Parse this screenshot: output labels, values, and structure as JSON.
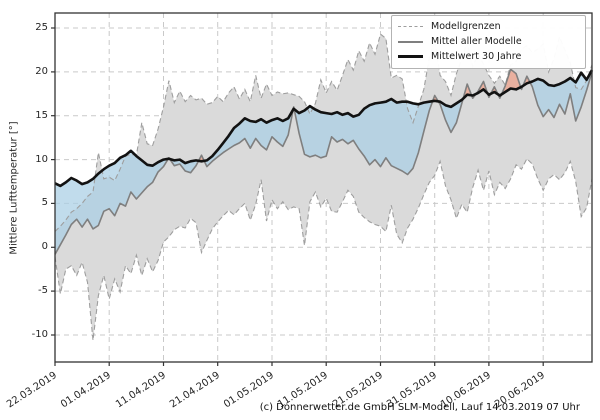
{
  "caption": "(c) Donnerwetter.de GmbH SLM-Modell, Lauf 14.03.2019 07 Uhr",
  "chart_data": {
    "type": "line",
    "title": "",
    "xlabel": "",
    "ylabel": "Mittlere Lufttemperatur [°]",
    "ylim": [
      -13,
      26.7
    ],
    "yticks": [
      25,
      20,
      15,
      10,
      5,
      0,
      -5,
      -10
    ],
    "grid": true,
    "legend_position": "upper right",
    "legend": [
      "Modellgrenzen",
      "Mittel aller Modelle",
      "Mittelwert 30 Jahre"
    ],
    "x_tick_labels": [
      "22.03.2019",
      "01.04.2019",
      "11.04.2019",
      "21.04.2019",
      "01.05.2019",
      "11.05.2019",
      "21.05.2019",
      "31.05.2019",
      "10.06.2019",
      "20.06.2019"
    ],
    "x_tick_days": [
      0,
      10,
      20,
      30,
      40,
      50,
      60,
      70,
      80,
      90
    ],
    "n_days": 100,
    "series": [
      {
        "name": "Modellgrenzen (Maximum)",
        "style": "dashed-gray",
        "values": [
          1.8,
          2.4,
          3.1,
          4.0,
          4.4,
          5.0,
          5.8,
          6.3,
          10.8,
          7.8,
          8.0,
          7.6,
          8.9,
          10.4,
          10.6,
          10.5,
          14.2,
          11.8,
          11.6,
          13.5,
          16.0,
          19.0,
          16.5,
          17.8,
          16.6,
          17.3,
          16.8,
          17.0,
          16.3,
          16.5,
          17.2,
          16.6,
          17.6,
          18.3,
          16.9,
          18.0,
          16.6,
          19.6,
          17.0,
          18.6,
          17.3,
          17.7,
          17.5,
          17.6,
          17.4,
          17.2,
          16.6,
          15.2,
          16.4,
          19.1,
          17.6,
          18.9,
          17.9,
          19.6,
          21.4,
          20.2,
          22.4,
          21.2,
          23.3,
          22.0,
          24.3,
          23.8,
          19.3,
          19.6,
          19.2,
          15.8,
          14.2,
          16.1,
          18.0,
          21.6,
          23.7,
          19.6,
          18.9,
          17.3,
          19.8,
          21.5,
          23.4,
          20.6,
          22.0,
          20.9,
          19.6,
          18.7,
          19.5,
          18.5,
          20.8,
          21.2,
          22.6,
          23.0,
          22.2,
          22.6,
          23.2,
          20.0,
          21.5,
          24.0,
          22.5,
          21.0,
          18.2,
          18.0,
          19.0,
          20.8
        ]
      },
      {
        "name": "Modellgrenzen (Minimum)",
        "style": "dashed-gray",
        "values": [
          -1.1,
          -5.3,
          -2.5,
          -2.1,
          -3.2,
          -1.7,
          -4.0,
          -10.6,
          -5.5,
          -3.2,
          -5.9,
          -3.6,
          -5.1,
          -2.1,
          -3.0,
          -0.9,
          -3.2,
          -1.3,
          -2.8,
          -1.5,
          0.6,
          1.2,
          2.0,
          2.4,
          2.2,
          3.3,
          2.8,
          -0.6,
          0.8,
          2.1,
          2.9,
          3.6,
          4.2,
          3.7,
          4.4,
          5.0,
          3.1,
          4.9,
          7.7,
          3.0,
          5.4,
          4.4,
          5.2,
          4.3,
          4.6,
          4.4,
          0.2,
          5.2,
          6.3,
          4.6,
          5.6,
          4.1,
          4.0,
          5.2,
          6.5,
          5.8,
          4.0,
          3.4,
          2.9,
          2.6,
          2.4,
          1.8,
          4.8,
          1.5,
          0.5,
          2.2,
          3.2,
          4.5,
          6.0,
          7.4,
          8.2,
          9.8,
          7.0,
          5.4,
          3.3,
          4.9,
          4.0,
          6.8,
          8.8,
          6.5,
          8.7,
          6.0,
          7.4,
          6.7,
          7.8,
          9.4,
          8.9,
          10.1,
          9.5,
          7.8,
          6.5,
          7.8,
          8.3,
          7.7,
          8.5,
          9.8,
          7.5,
          3.5,
          4.5,
          7.8
        ]
      },
      {
        "name": "Mittel aller Modelle",
        "style": "solid-gray",
        "values": [
          -0.8,
          0.3,
          1.4,
          2.6,
          3.2,
          2.3,
          3.2,
          2.1,
          2.5,
          4.1,
          4.4,
          3.6,
          5.0,
          4.7,
          6.3,
          5.5,
          6.2,
          6.9,
          7.4,
          8.6,
          9.2,
          10.2,
          9.3,
          9.5,
          8.7,
          8.5,
          9.3,
          10.5,
          9.2,
          9.8,
          10.3,
          10.8,
          11.2,
          11.6,
          11.9,
          12.4,
          11.3,
          12.4,
          11.6,
          11.1,
          12.6,
          12.0,
          11.5,
          12.8,
          16.0,
          13.0,
          10.6,
          10.3,
          10.5,
          10.2,
          10.4,
          12.6,
          12.0,
          12.3,
          11.8,
          12.2,
          11.2,
          10.4,
          9.4,
          10.0,
          9.2,
          10.2,
          9.3,
          9.0,
          8.7,
          8.3,
          9.0,
          10.8,
          13.2,
          15.6,
          17.3,
          16.3,
          14.5,
          13.1,
          14.2,
          16.4,
          18.6,
          17.0,
          17.8,
          18.9,
          17.1,
          18.3,
          17.0,
          18.4,
          20.3,
          19.8,
          18.0,
          19.5,
          18.3,
          16.2,
          14.9,
          15.7,
          14.8,
          16.3,
          15.2,
          17.5,
          14.4,
          16.0,
          17.9,
          20.0
        ]
      },
      {
        "name": "Mittelwert 30 Jahre",
        "style": "solid-black-thick",
        "values": [
          7.3,
          7.0,
          7.4,
          7.9,
          7.6,
          7.2,
          7.4,
          7.8,
          8.4,
          8.9,
          9.3,
          9.6,
          10.2,
          10.5,
          11.0,
          10.4,
          9.9,
          9.4,
          9.3,
          9.7,
          10.0,
          10.1,
          9.9,
          10.0,
          9.6,
          9.8,
          9.9,
          9.8,
          9.9,
          10.4,
          11.1,
          11.9,
          12.7,
          13.6,
          14.1,
          14.7,
          14.4,
          14.3,
          14.6,
          14.2,
          14.5,
          14.7,
          14.4,
          14.7,
          15.8,
          15.3,
          15.6,
          16.1,
          15.7,
          15.4,
          15.3,
          15.2,
          15.4,
          15.1,
          15.3,
          14.9,
          15.1,
          15.8,
          16.2,
          16.4,
          16.5,
          16.6,
          16.9,
          16.5,
          16.6,
          16.6,
          16.4,
          16.3,
          16.5,
          16.6,
          16.7,
          16.6,
          16.2,
          16.0,
          16.4,
          16.8,
          17.4,
          17.3,
          17.6,
          18.0,
          17.4,
          17.7,
          17.3,
          17.7,
          18.1,
          18.0,
          18.3,
          18.7,
          18.9,
          19.2,
          19.0,
          18.5,
          18.4,
          18.6,
          18.9,
          19.3,
          18.8,
          19.9,
          19.1,
          20.2
        ]
      }
    ],
    "fills": {
      "model_range_band": "#dadada",
      "mean_below_30yr": "#a9cfe4",
      "mean_above_30yr": "#ef9f88"
    },
    "colors": {
      "bound_line": "#9e9e9e",
      "mean_line": "#7f7f7f",
      "mean30_line": "#121212",
      "grid": "#c9c9c9",
      "border": "#333333",
      "text": "#262626"
    }
  }
}
